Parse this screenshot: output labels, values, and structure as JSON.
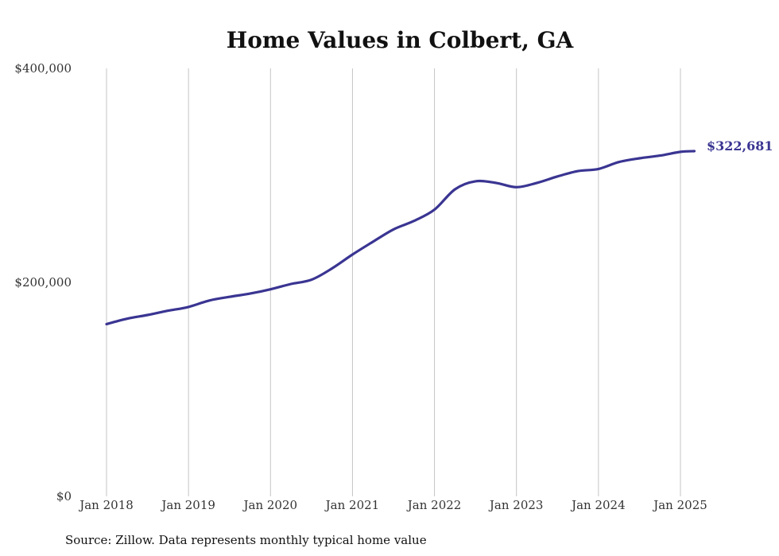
{
  "chart_data": {
    "type": "line",
    "title": "Home Values in Colbert, GA",
    "source": "Source: Zillow. Data represents monthly typical home value",
    "ylim": [
      0,
      400000
    ],
    "y_ticks": [
      {
        "value": 0,
        "label": "$0"
      },
      {
        "value": 200000,
        "label": "$200,000"
      },
      {
        "value": 400000,
        "label": "$400,000"
      }
    ],
    "x_ticks": [
      {
        "value": 2018,
        "label": "Jan 2018"
      },
      {
        "value": 2019,
        "label": "Jan 2019"
      },
      {
        "value": 2020,
        "label": "Jan 2020"
      },
      {
        "value": 2021,
        "label": "Jan 2021"
      },
      {
        "value": 2022,
        "label": "Jan 2022"
      },
      {
        "value": 2023,
        "label": "Jan 2023"
      },
      {
        "value": 2024,
        "label": "Jan 2024"
      },
      {
        "value": 2025,
        "label": "Jan 2025"
      }
    ],
    "xlim": [
      2018,
      2025
    ],
    "grid": "vertical",
    "line_color": "#3a3592",
    "end_label": "$322,681",
    "series": [
      {
        "points": [
          [
            2018.0,
            161000
          ],
          [
            2018.25,
            166000
          ],
          [
            2018.5,
            169500
          ],
          [
            2018.75,
            173500
          ],
          [
            2019.0,
            177000
          ],
          [
            2019.25,
            183000
          ],
          [
            2019.5,
            186500
          ],
          [
            2019.75,
            189500
          ],
          [
            2020.0,
            193500
          ],
          [
            2020.25,
            198500
          ],
          [
            2020.5,
            202500
          ],
          [
            2020.75,
            213000
          ],
          [
            2021.0,
            226000
          ],
          [
            2021.25,
            238000
          ],
          [
            2021.5,
            249500
          ],
          [
            2021.75,
            257500
          ],
          [
            2022.0,
            268000
          ],
          [
            2022.25,
            287000
          ],
          [
            2022.5,
            294500
          ],
          [
            2022.75,
            293000
          ],
          [
            2023.0,
            289000
          ],
          [
            2023.25,
            293000
          ],
          [
            2023.5,
            299000
          ],
          [
            2023.75,
            304000
          ],
          [
            2024.0,
            306000
          ],
          [
            2024.25,
            312500
          ],
          [
            2024.5,
            316000
          ],
          [
            2024.75,
            318500
          ],
          [
            2025.0,
            322000
          ],
          [
            2025.17,
            322681
          ]
        ]
      }
    ]
  }
}
